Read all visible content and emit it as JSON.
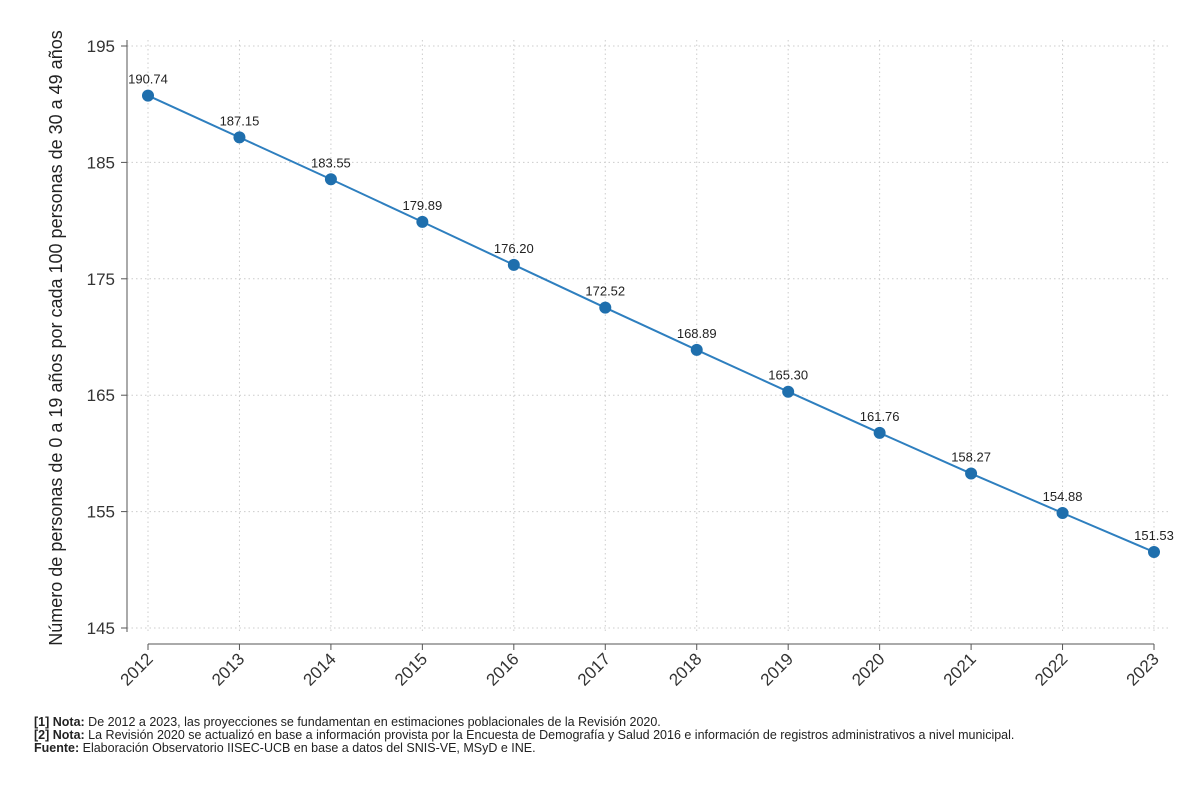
{
  "chart_data": {
    "type": "line",
    "title": "",
    "xlabel": "",
    "ylabel": "Número de personas de 0 a 19 años por cada 100 personas de 30 a 49 años",
    "x": [
      "2012",
      "2013",
      "2014",
      "2015",
      "2016",
      "2017",
      "2018",
      "2019",
      "2020",
      "2021",
      "2022",
      "2023"
    ],
    "series": [
      {
        "values": [
          190.74,
          187.15,
          183.55,
          179.89,
          176.2,
          172.52,
          168.89,
          165.3,
          161.76,
          158.27,
          154.88,
          151.53
        ],
        "labels": [
          "190.74",
          "187.15",
          "183.55",
          "179.89",
          "176.20",
          "172.52",
          "168.89",
          "165.30",
          "161.76",
          "158.27",
          "154.88",
          "151.53"
        ]
      }
    ],
    "ylim": [
      145,
      195
    ],
    "yticks": [
      145,
      155,
      165,
      175,
      185,
      195
    ],
    "grid": true,
    "legend": "none",
    "colors": {
      "line": "#2e7fbf",
      "marker": "#1f6fad",
      "grid": "#cccccc",
      "axis": "#555555"
    }
  },
  "notes": [
    {
      "tag": "[1] Nota:",
      "text": " De 2012 a 2023, las proyecciones se fundamentan en estimaciones poblacionales de la Revisión 2020."
    },
    {
      "tag": "[2] Nota:",
      "text": " La Revisión 2020 se actualizó en base a información provista por la Encuesta de Demografía y Salud 2016 e información de registros administrativos a nivel municipal."
    },
    {
      "tag": "Fuente:",
      "text": " Elaboración Observatorio IISEC-UCB en base a datos del SNIS-VE, MSyD e INE."
    }
  ]
}
